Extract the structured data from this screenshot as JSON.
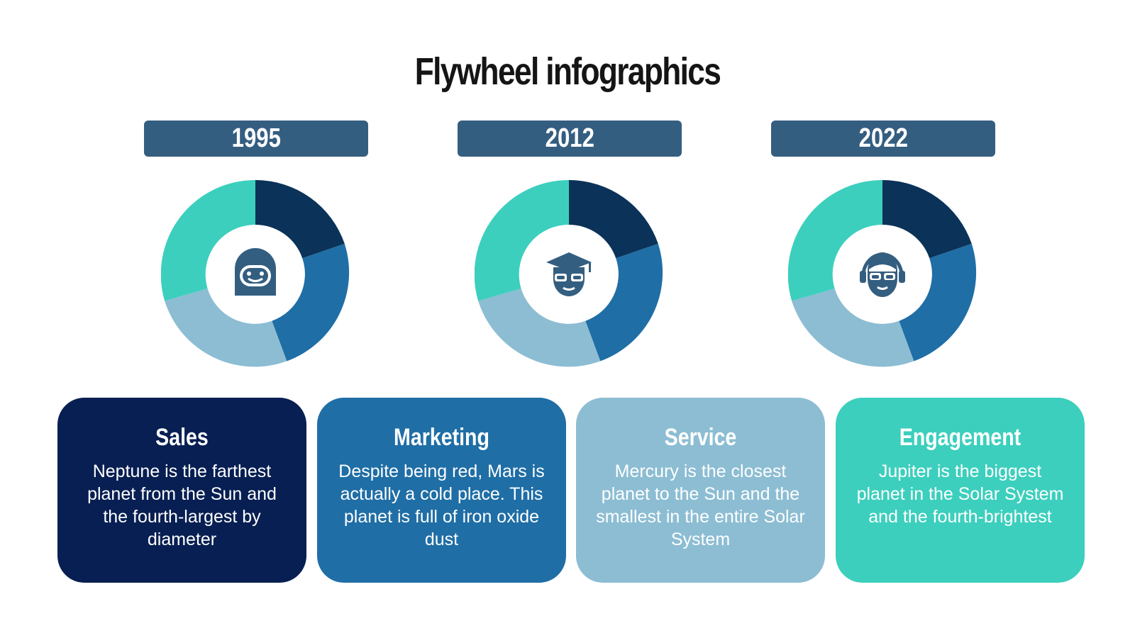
{
  "title": "Flywheel infographics",
  "years": [
    "1995",
    "2012",
    "2022"
  ],
  "colors": {
    "background": "#ffffff",
    "year_pill": "#345e80",
    "sales": "#071f52",
    "marketing": "#1f6ea6",
    "service": "#8cbdd3",
    "engagement": "#3ccfbd",
    "wheel_dark": "#0b3258",
    "wheel_blue": "#1f6ea6",
    "wheel_light": "#8cbdd3",
    "wheel_teal": "#3ccfbd",
    "icon": "#345e80"
  },
  "wheels": [
    {
      "icon": "robot-face-icon"
    },
    {
      "icon": "graduate-face-icon"
    },
    {
      "icon": "headset-face-icon"
    }
  ],
  "cards": [
    {
      "title": "Sales",
      "text": "Neptune is the farthest planet from the Sun and the fourth-largest by diameter"
    },
    {
      "title": "Marketing",
      "text": "Despite being red, Mars is actually a cold place. This planet is full of iron oxide dust"
    },
    {
      "title": "Service",
      "text": "Mercury is the closest planet to the Sun and the smallest in the entire Solar System"
    },
    {
      "title": "Engagement",
      "text": "Jupiter is the biggest planet in the Solar System and the fourth-brightest"
    }
  ]
}
